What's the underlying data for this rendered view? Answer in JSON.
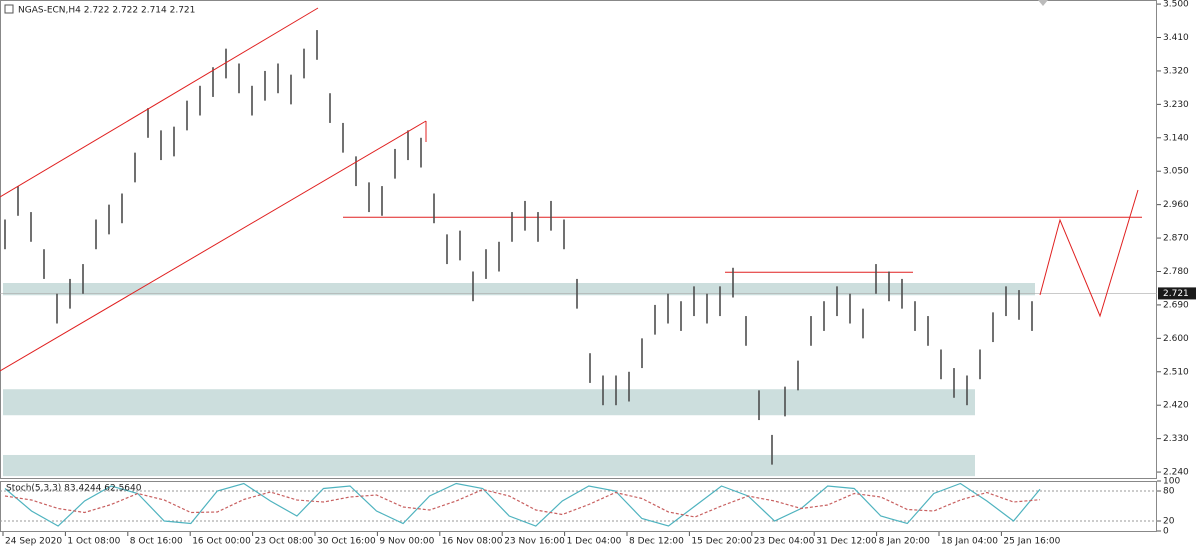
{
  "chart_data": [
    {
      "type": "ohlc",
      "title": "NGAS-ECN,H4  2.722 2.722 2.714 2.721",
      "color": "#4d4d4d",
      "high": [
        2.92,
        3.01,
        2.94,
        2.84,
        2.72,
        2.76,
        2.8,
        2.92,
        2.96,
        2.99,
        3.1,
        3.22,
        3.16,
        3.17,
        3.24,
        3.28,
        3.33,
        3.38,
        3.34,
        3.28,
        3.32,
        3.34,
        3.31,
        3.38,
        3.43,
        3.26,
        3.18,
        3.09,
        3.02,
        3.01,
        3.11,
        3.16,
        3.14,
        2.99,
        2.88,
        2.89,
        2.78,
        2.84,
        2.86,
        2.94,
        2.97,
        2.94,
        2.97,
        2.92,
        2.76,
        2.56,
        2.5,
        2.5,
        2.51,
        2.6,
        2.69,
        2.72,
        2.7,
        2.74,
        2.72,
        2.74,
        2.79,
        2.66,
        2.46,
        2.34,
        2.47,
        2.54,
        2.66,
        2.7,
        2.74,
        2.72,
        2.68,
        2.8,
        2.78,
        2.76,
        2.7,
        2.66,
        2.57,
        2.52,
        2.5,
        2.57,
        2.67,
        2.74,
        2.73,
        2.7
      ],
      "low": [
        2.84,
        2.93,
        2.86,
        2.76,
        2.64,
        2.68,
        2.72,
        2.84,
        2.88,
        2.91,
        3.02,
        3.14,
        3.08,
        3.09,
        3.16,
        3.2,
        3.25,
        3.3,
        3.26,
        3.2,
        3.24,
        3.26,
        3.23,
        3.3,
        3.35,
        3.18,
        3.1,
        3.01,
        2.94,
        2.93,
        3.03,
        3.08,
        3.06,
        2.91,
        2.8,
        2.81,
        2.7,
        2.76,
        2.78,
        2.86,
        2.89,
        2.86,
        2.89,
        2.84,
        2.68,
        2.48,
        2.42,
        2.42,
        2.43,
        2.52,
        2.61,
        2.64,
        2.62,
        2.66,
        2.64,
        2.66,
        2.71,
        2.58,
        2.38,
        2.26,
        2.39,
        2.46,
        2.58,
        2.62,
        2.66,
        2.64,
        2.6,
        2.72,
        2.7,
        2.68,
        2.62,
        2.58,
        2.49,
        2.44,
        2.42,
        2.49,
        2.59,
        2.66,
        2.65,
        2.62
      ],
      "ylim": [
        2.224,
        3.511
      ],
      "yticks": [
        {
          "value": 3.5,
          "label": "3.500"
        },
        {
          "value": 3.41,
          "label": "3.410"
        },
        {
          "value": 3.32,
          "label": "3.320"
        },
        {
          "value": 3.23,
          "label": "3.230"
        },
        {
          "value": 3.14,
          "label": "3.140"
        },
        {
          "value": 3.05,
          "label": "3.050"
        },
        {
          "value": 2.96,
          "label": "2.960"
        },
        {
          "value": 2.87,
          "label": "2.870"
        },
        {
          "value": 2.78,
          "label": "2.780"
        },
        {
          "value": 2.69,
          "label": "2.690"
        },
        {
          "value": 2.6,
          "label": "2.600"
        },
        {
          "value": 2.51,
          "label": "2.510"
        },
        {
          "value": 2.42,
          "label": "2.420"
        },
        {
          "value": 2.33,
          "label": "2.330"
        },
        {
          "value": 2.24,
          "label": "2.240"
        }
      ],
      "x_labels": [
        "24 Sep 2020",
        "1 Oct 08:00",
        "8 Oct 16:00",
        "16 Oct 00:00",
        "23 Oct 08:00",
        "30 Oct 16:00",
        "9 Nov 00:00",
        "16 Nov 08:00",
        "23 Nov 16:00",
        "1 Dec 04:00",
        "8 Dec 12:00",
        "15 Dec 20:00",
        "23 Dec 04:00",
        "31 Dec 12:00",
        "8 Jan 20:00",
        "18 Jan 04:00",
        "25 Jan 16:00"
      ],
      "zones": [
        [
          2.716,
          2.749
        ],
        [
          2.393,
          2.463
        ],
        [
          2.229,
          2.286
        ]
      ],
      "zone_color": "#c9dcdb",
      "horizontal_lines": [
        2.926,
        2.778
      ],
      "line_color": "#e02020",
      "last_price": {
        "value": 2.721,
        "label": "2.721"
      }
    },
    {
      "type": "stochastic",
      "title": "Stoch(5,3,3) 83.4244 62.5640",
      "main": [
        85,
        40,
        10,
        60,
        90,
        75,
        20,
        15,
        80,
        95,
        60,
        30,
        85,
        90,
        40,
        15,
        70,
        95,
        85,
        30,
        10,
        60,
        90,
        80,
        25,
        10,
        50,
        90,
        70,
        20,
        45,
        90,
        85,
        30,
        15,
        75,
        95,
        60,
        20,
        83.4244
      ],
      "signal": [
        70,
        62,
        45,
        37,
        53,
        75,
        62,
        37,
        38,
        63,
        78,
        62,
        58,
        68,
        72,
        48,
        42,
        60,
        83,
        70,
        42,
        33,
        53,
        77,
        65,
        38,
        28,
        50,
        70,
        60,
        45,
        52,
        75,
        68,
        43,
        40,
        62,
        77,
        58,
        62.564
      ],
      "main_color": "#4fb3bf",
      "signal_color": "#c86060",
      "ylim": [
        0,
        100
      ],
      "yticks": [
        0,
        20,
        80,
        100
      ],
      "levels": [
        20,
        80
      ]
    }
  ]
}
